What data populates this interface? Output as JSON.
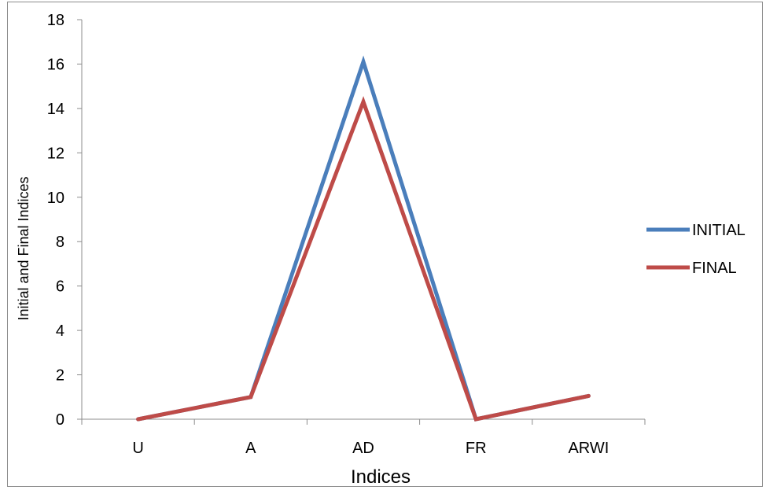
{
  "chart_data": {
    "type": "line",
    "title": "",
    "xlabel": "Indices",
    "ylabel": "Initial and Final Indices",
    "categories": [
      "U",
      "A",
      "AD",
      "FR",
      "ARWI"
    ],
    "ylim": [
      0,
      18
    ],
    "yticks": [
      0,
      2,
      4,
      6,
      8,
      10,
      12,
      14,
      16,
      18
    ],
    "grid": false,
    "legend_position": "right",
    "series": [
      {
        "name": "INITIAL",
        "color": "#4a7ebb",
        "values": [
          0,
          1,
          16.1,
          0,
          1.05
        ]
      },
      {
        "name": "FINAL",
        "color": "#be4b48",
        "values": [
          0,
          1,
          14.3,
          0,
          1.05
        ]
      }
    ]
  }
}
